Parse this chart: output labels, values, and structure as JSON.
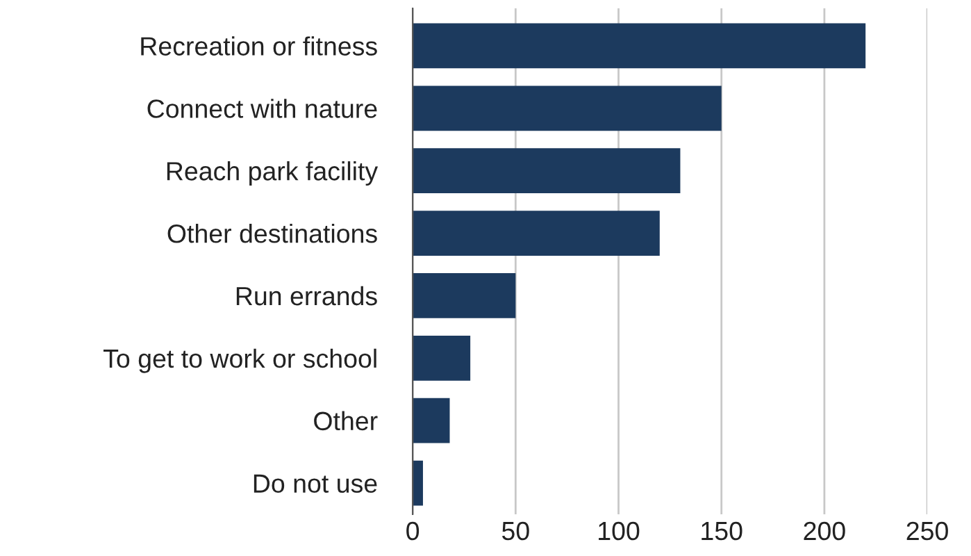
{
  "chart_data": {
    "type": "bar",
    "orientation": "horizontal",
    "categories": [
      "Recreation or fitness",
      "Connect with nature",
      "Reach park facility",
      "Other destinations",
      "Run errands",
      "To get to work or school",
      "Other",
      "Do not use"
    ],
    "values": [
      220,
      150,
      130,
      120,
      50,
      28,
      18,
      5
    ],
    "color": "#1c3a5e",
    "xlim": [
      0,
      250
    ],
    "xticks": [
      0,
      50,
      100,
      150,
      200,
      250
    ],
    "grid": "x"
  }
}
